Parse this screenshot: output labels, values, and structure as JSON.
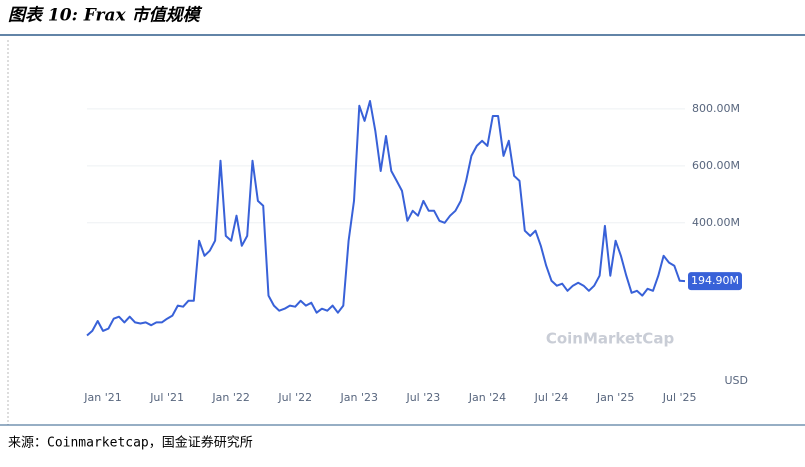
{
  "header": {
    "title": "图表 10: Frax 市值规模"
  },
  "chart_data": {
    "type": "line",
    "watermark": "CoinMarketCap",
    "unit_label": "USD",
    "categories": [
      null,
      null,
      null,
      "Jan '21",
      null,
      null,
      null,
      null,
      null,
      null,
      null,
      null,
      null,
      null,
      null,
      "Jul '21",
      null,
      null,
      null,
      null,
      null,
      null,
      null,
      null,
      null,
      null,
      null,
      "Jan '22",
      null,
      null,
      null,
      null,
      null,
      null,
      null,
      null,
      null,
      null,
      null,
      "Jul '22",
      null,
      null,
      null,
      null,
      null,
      null,
      null,
      null,
      null,
      null,
      null,
      "Jan '23",
      null,
      null,
      null,
      null,
      null,
      null,
      null,
      null,
      null,
      null,
      null,
      "Jul '23",
      null,
      null,
      null,
      null,
      null,
      null,
      null,
      null,
      null,
      null,
      null,
      "Jan '24",
      null,
      null,
      null,
      null,
      null,
      null,
      null,
      null,
      null,
      null,
      null,
      "Jul '24",
      null,
      null,
      null,
      null,
      null,
      null,
      null,
      null,
      null,
      null,
      null,
      "Jan '25",
      null,
      null,
      null,
      null,
      null,
      null,
      null,
      null,
      null,
      null,
      null,
      "Jul '25",
      null
    ],
    "series": [
      {
        "name": "Frax",
        "color": "#3861d8",
        "values": [
          4,
          20,
          55,
          20,
          28,
          63,
          70,
          50,
          70,
          50,
          46,
          50,
          40,
          50,
          50,
          63,
          74,
          109,
          105,
          126,
          126,
          337,
          284,
          302,
          337,
          618,
          354,
          337,
          425,
          319,
          354,
          618,
          477,
          460,
          144,
          109,
          91,
          98,
          109,
          105,
          126,
          109,
          119,
          84,
          98,
          91,
          109,
          84,
          109,
          337,
          477,
          811,
          758,
          828,
          723,
          582,
          705,
          582,
          547,
          512,
          407,
          442,
          425,
          477,
          442,
          442,
          407,
          400,
          425,
          442,
          477,
          547,
          635,
          670,
          688,
          670,
          775,
          775,
          635,
          688,
          565,
          547,
          372,
          354,
          372,
          319,
          249,
          196,
          179,
          186,
          161,
          179,
          189,
          179,
          161,
          179,
          214,
          389,
          214,
          337,
          284,
          214,
          154,
          161,
          144,
          168,
          161,
          214,
          284,
          260,
          249,
          196,
          194.9
        ]
      }
    ],
    "ylim": [
      -170,
      1000
    ],
    "yticks": [
      {
        "value": 400,
        "label": "400.00M"
      },
      {
        "value": 600,
        "label": "600.00M"
      },
      {
        "value": 800,
        "label": "800.00M"
      }
    ],
    "grid": true,
    "annotations": [
      {
        "text": "194.90M",
        "value": 194.9
      }
    ]
  },
  "footer": {
    "source": "来源：Coinmarketcap，国金证券研究所"
  }
}
